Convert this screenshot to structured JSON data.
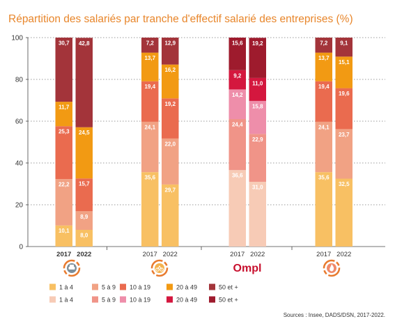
{
  "chart_data": {
    "type": "bar",
    "stacked": true,
    "title": "Répartition des salariés par tranche d'effectif salarié des entreprises (%)",
    "ylim": [
      0,
      100
    ],
    "yticks": [
      "0",
      "20",
      "40",
      "60",
      "80",
      "100"
    ],
    "groups": [
      {
        "icon": "car-repair-icon",
        "palette": "dark",
        "bars": [
          {
            "label": "2017",
            "bold": true,
            "values": [
              10.1,
              22.2,
              25.3,
              11.7,
              30.7
            ],
            "labels": [
              "10,1",
              "22,2",
              "25,3",
              "11,7",
              "30,7"
            ]
          },
          {
            "label": "2022",
            "bold": true,
            "values": [
              8.0,
              8.9,
              15.7,
              24.5,
              42.8
            ],
            "labels": [
              "8,0",
              "8,9",
              "15,7",
              "24,5",
              "42,8"
            ]
          }
        ]
      },
      {
        "icon": "bicycle-icon",
        "palette": "orange",
        "bars": [
          {
            "label": "2017",
            "bold": false,
            "values": [
              35.6,
              24.1,
              19.4,
              13.7,
              7.2
            ],
            "labels": [
              "35,6",
              "24,1",
              "19,4",
              "13,7",
              "7,2"
            ]
          },
          {
            "label": "2022",
            "bold": false,
            "values": [
              29.7,
              22.0,
              19.2,
              16.2,
              12.9
            ],
            "labels": [
              "29,7",
              "22,0",
              "19,2",
              "16,2",
              "12,9"
            ]
          }
        ]
      },
      {
        "logo_text": "Ompl",
        "palette": "pink",
        "bars": [
          {
            "label": "2017",
            "bold": false,
            "values": [
              36.6,
              24.4,
              14.2,
              9.2,
              15.6
            ],
            "labels": [
              "36,6",
              "24,4",
              "14,2",
              "9,2",
              "15,6"
            ]
          },
          {
            "label": "2022",
            "bold": false,
            "values": [
              31.0,
              22.9,
              15.8,
              11.0,
              19.2
            ],
            "labels": [
              "31,0",
              "22,9",
              "15,8",
              "11,0",
              "19,2"
            ]
          }
        ]
      },
      {
        "icon": "fire-icon",
        "palette": "orange",
        "bars": [
          {
            "label": "2017",
            "bold": false,
            "values": [
              35.6,
              24.1,
              19.4,
              13.7,
              7.2
            ],
            "labels": [
              "35,6",
              "24,1",
              "19,4",
              "13,7",
              "7,2"
            ]
          },
          {
            "label": "2022",
            "bold": false,
            "values": [
              32.5,
              23.7,
              19.6,
              15.1,
              9.1
            ],
            "labels": [
              "32,5",
              "23,7",
              "19,6",
              "15,1",
              "9,1"
            ]
          }
        ]
      }
    ],
    "colors": {
      "orange": [
        "#f8c063",
        "#f1a284",
        "#ea6b4f",
        "#f29a13",
        "#a3343a"
      ],
      "dark": [
        "#f8c063",
        "#f1a284",
        "#ea6b4f",
        "#f29a13",
        "#a3343a"
      ],
      "pink": [
        "#f7cbb6",
        "#f09488",
        "#ee8eaa",
        "#d4173e",
        "#9e1b2d"
      ]
    },
    "legend": [
      {
        "labels": [
          "1 à 4",
          "5 à 9",
          "10 à 19",
          "20 à 49",
          "50 et +"
        ],
        "colors": [
          "#f8c063",
          "#f1a284",
          "#ea6b4f",
          "#f29a13",
          "#a3343a"
        ]
      },
      {
        "labels": [
          "1 à 4",
          "5 à 9",
          "10 à 19",
          "20 à 49",
          "50 et +"
        ],
        "colors": [
          "#f7cbb6",
          "#f09488",
          "#ee8eaa",
          "#d4173e",
          "#9e1b2d"
        ]
      }
    ]
  },
  "source": "Sources : Insee, DADS/DSN, 2017-2022."
}
